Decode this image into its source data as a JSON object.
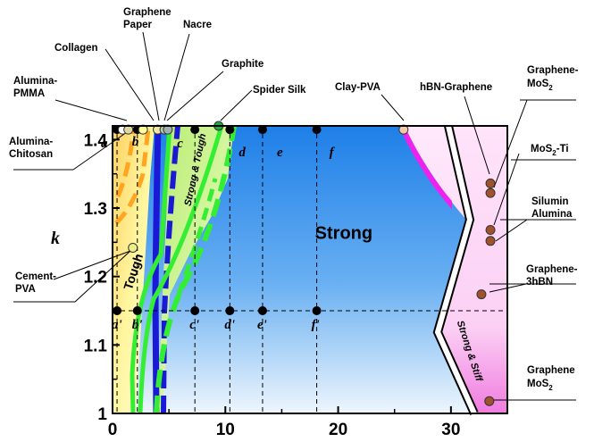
{
  "chart_data": {
    "type": "scatter",
    "xlim": [
      0,
      35
    ],
    "ylim": [
      1.0,
      1.42
    ],
    "ylabel": "k",
    "xticks": [
      "0",
      "10",
      "20",
      "30"
    ],
    "yticks": [
      "1",
      "1.1",
      "1.2",
      "1.3",
      "1.4"
    ],
    "grid": false,
    "reference_line": {
      "y": 1.15
    },
    "vertical_dashed_lines_x": [
      0.4,
      2.2,
      7.3,
      10.4,
      13.3,
      18.1
    ],
    "points_top": [
      {
        "label": "a",
        "x": 0.4,
        "y": 1.4146
      },
      {
        "label": "b",
        "x": 2.2,
        "y": 1.4146
      },
      {
        "label": "c",
        "x": 7.3,
        "y": 1.4146
      },
      {
        "label": "d",
        "x": 10.4,
        "y": 1.4146
      },
      {
        "label": "e",
        "x": 13.3,
        "y": 1.4146
      },
      {
        "label": "f",
        "x": 18.1,
        "y": 1.4146
      }
    ],
    "points_bottom": [
      {
        "label": "a'",
        "x": 0.4,
        "y": 1.15
      },
      {
        "label": "b'",
        "x": 2.2,
        "y": 1.15
      },
      {
        "label": "c'",
        "x": 7.3,
        "y": 1.15
      },
      {
        "label": "d'",
        "x": 10.4,
        "y": 1.15
      },
      {
        "label": "e'",
        "x": 13.3,
        "y": 1.15
      },
      {
        "label": "f'",
        "x": 18.1,
        "y": 1.15
      }
    ],
    "region_labels": [
      {
        "text": "Strong",
        "x": 20.5,
        "y": 1.255
      },
      {
        "text": "Tough",
        "x": 2.2,
        "y": 1.205
      },
      {
        "text": "Strong & Tough",
        "x": 7.6,
        "y": 1.355
      },
      {
        "text": "Strong & Stiff",
        "x": 31.4,
        "y": 1.09
      }
    ],
    "materials": [
      {
        "name": "Alumina-PMMA",
        "x": 0.9,
        "y": 1.4146,
        "color": "#ffffff"
      },
      {
        "name": "Alumina-Chitosan",
        "x": 1.4,
        "y": 1.4146,
        "color": "#e0d8a0"
      },
      {
        "name": "Collagen",
        "x": 2.7,
        "y": 1.4146,
        "color": "#ffff99"
      },
      {
        "name": "Graphene Paper",
        "x": 4.0,
        "y": 1.4146,
        "color": "#f2e6a0"
      },
      {
        "name": "Nacre",
        "x": 4.6,
        "y": 1.4146,
        "color": "#b8ccb0"
      },
      {
        "name": "Graphite",
        "x": 4.9,
        "y": 1.4146,
        "color": "#a0b0b0"
      },
      {
        "name": "Spider Silk",
        "x": 9.4,
        "y": 1.42,
        "color": "#22aa44"
      },
      {
        "name": "Clay-PVA",
        "x": 25.8,
        "y": 1.4146,
        "color": "#f5c8a8"
      },
      {
        "name": "Cement-PVA",
        "x": 1.8,
        "y": 1.242,
        "color": "#eeee88"
      },
      {
        "name": "hBN-Graphene",
        "x": 33.5,
        "y": 1.336,
        "color": "#a0522d"
      },
      {
        "name": "Graphene-MoS2",
        "x": 33.5,
        "y": 1.322,
        "color": "#a0522d"
      },
      {
        "name": "MoS2-Ti",
        "x": 33.5,
        "y": 1.268,
        "color": "#a0522d"
      },
      {
        "name": "Silumin Alumina",
        "x": 33.5,
        "y": 1.252,
        "color": "#a0522d"
      },
      {
        "name": "Graphene-3hBN",
        "x": 32.7,
        "y": 1.174,
        "color": "#a0522d"
      },
      {
        "name": "Graphene MoS2",
        "x": 33.4,
        "y": 1.018,
        "color": "#a0522d"
      }
    ],
    "callouts": [
      {
        "text": [
          "Graphene",
          "Paper"
        ]
      },
      {
        "text": [
          "Nacre"
        ]
      },
      {
        "text": [
          "Collagen"
        ]
      },
      {
        "text": [
          "Graphite"
        ]
      },
      {
        "text": [
          "Alumina-",
          "PMMA"
        ]
      },
      {
        "text": [
          "Spider Silk"
        ]
      },
      {
        "text": [
          "Clay-PVA"
        ]
      },
      {
        "text": [
          "hBN-Graphene"
        ]
      },
      {
        "text": [
          "Graphene-",
          "MoS",
          "2"
        ]
      },
      {
        "text": [
          "Alumina-",
          "Chitosan"
        ]
      },
      {
        "text": [
          "MoS",
          "2",
          "-Ti"
        ]
      },
      {
        "text": [
          "Silumin",
          "Alumina"
        ]
      },
      {
        "text": [
          "Cement-",
          "PVA"
        ]
      },
      {
        "text": [
          "Graphene-",
          "3hBN"
        ]
      },
      {
        "text": [
          "Graphene",
          "MoS",
          "2"
        ]
      }
    ],
    "colors": {
      "orange": "#ffa520",
      "blue": "#1a1ad6",
      "green": "#33ee33",
      "magenta": "#ee22ee",
      "region_blue": "#1e7fe8"
    }
  }
}
